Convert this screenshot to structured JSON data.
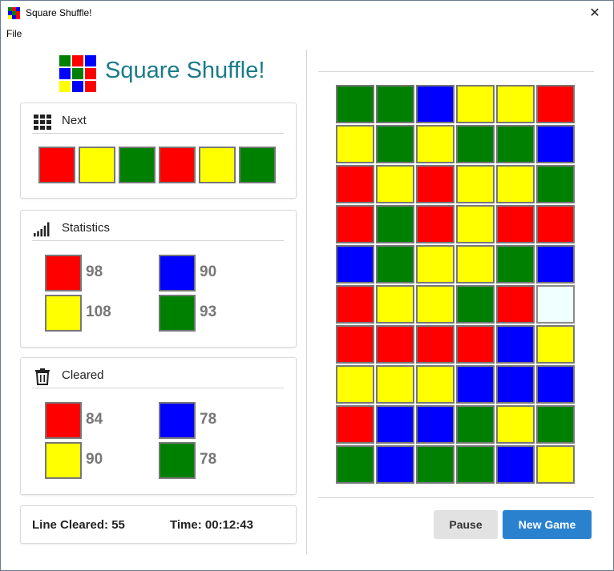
{
  "window": {
    "title": "Square Shuffle!",
    "close_glyph": "✕"
  },
  "menu": {
    "file_label": "File"
  },
  "app": {
    "title": "Square Shuffle!"
  },
  "colors": {
    "red": "#ff0000",
    "yellow": "#ffff00",
    "green": "#008000",
    "blue": "#0000ff",
    "empty": "#f0ffff",
    "accent": "#1a7b8a",
    "primary_button": "#2a82cf"
  },
  "logo": {
    "cells": [
      "green",
      "red",
      "blue",
      "blue",
      "green",
      "red",
      "yellow",
      "blue",
      "red"
    ]
  },
  "next": {
    "title": "Next",
    "icon": "grid-icon",
    "pieces": [
      "red",
      "yellow",
      "green",
      "red",
      "yellow",
      "green"
    ]
  },
  "statistics": {
    "title": "Statistics",
    "icon": "signal-bars-icon",
    "items": [
      {
        "color": "red",
        "value": "98"
      },
      {
        "color": "blue",
        "value": "90"
      },
      {
        "color": "yellow",
        "value": "108"
      },
      {
        "color": "green",
        "value": "93"
      }
    ]
  },
  "cleared": {
    "title": "Cleared",
    "icon": "trash-icon",
    "items": [
      {
        "color": "red",
        "value": "84"
      },
      {
        "color": "blue",
        "value": "78"
      },
      {
        "color": "yellow",
        "value": "90"
      },
      {
        "color": "green",
        "value": "78"
      }
    ]
  },
  "footer": {
    "lines_cleared": "Line Cleared: 55",
    "time": "Time: 00:12:43"
  },
  "board": {
    "rows": [
      [
        "green",
        "green",
        "blue",
        "yellow",
        "yellow",
        "red"
      ],
      [
        "yellow",
        "green",
        "yellow",
        "green",
        "green",
        "blue"
      ],
      [
        "red",
        "yellow",
        "red",
        "yellow",
        "yellow",
        "green"
      ],
      [
        "red",
        "green",
        "red",
        "yellow",
        "red",
        "red"
      ],
      [
        "blue",
        "green",
        "yellow",
        "yellow",
        "green",
        "blue"
      ],
      [
        "red",
        "yellow",
        "yellow",
        "green",
        "red",
        "empty"
      ],
      [
        "red",
        "red",
        "red",
        "red",
        "blue",
        "yellow"
      ],
      [
        "yellow",
        "yellow",
        "yellow",
        "blue",
        "blue",
        "blue"
      ],
      [
        "red",
        "blue",
        "blue",
        "green",
        "yellow",
        "green"
      ],
      [
        "green",
        "blue",
        "green",
        "green",
        "blue",
        "yellow"
      ]
    ]
  },
  "buttons": {
    "pause": "Pause",
    "new_game": "New Game"
  }
}
